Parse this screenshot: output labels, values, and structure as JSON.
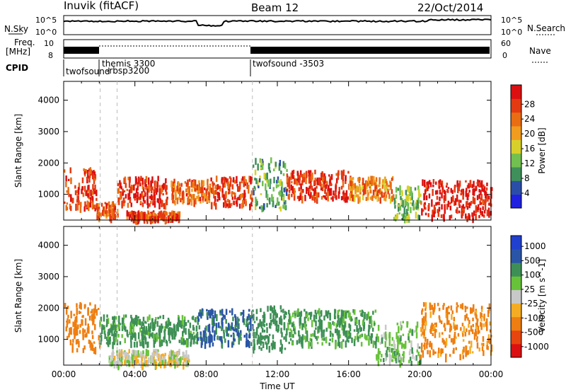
{
  "header": {
    "station": "Inuvik (fitACF)",
    "beam": "Beam 12",
    "date": "22/Oct/2014"
  },
  "summary_panels": {
    "sky_label": "N.Sky",
    "sky_ticks": [
      "10^5",
      "10^0"
    ],
    "search_label": "N.Search",
    "search_ticks": [
      "10^5",
      "10^0"
    ],
    "freq_label_top": "Freq.",
    "freq_label_bottom": "[MHz]",
    "freq_ticks": [
      "10",
      "8"
    ],
    "nave_label": "Nave",
    "nave_ticks": [
      "60",
      "0"
    ],
    "cpid_label": "CPID",
    "cpid_entries": [
      {
        "text": "twofsound",
        "t": 0.05
      },
      {
        "text": "themis 3300",
        "t": 2.0
      },
      {
        "text": "-rbsp3200",
        "t": 2.05
      },
      {
        "text": "twofsound -3503",
        "t": 10.6
      }
    ]
  },
  "colors": {
    "power": [
      "#2020e0",
      "#2a4ea8",
      "#3f8f5b",
      "#72c04f",
      "#d7d02a",
      "#f19b1f",
      "#e96d12",
      "#e43a12",
      "#dc1010"
    ],
    "velocity": [
      "#dc1010",
      "#e7450f",
      "#ee7e11",
      "#f4ad23",
      "#c8c8c8",
      "#67c23a",
      "#3e8f56",
      "#2a55a6",
      "#2040d0"
    ]
  },
  "chart_data": [
    {
      "type": "heatmap",
      "name": "power",
      "xlabel": "",
      "ylabel": "Slant Range [km]",
      "x_ticks": [
        "00:00",
        "04:00",
        "08:00",
        "12:00",
        "16:00",
        "20:00",
        "00:00"
      ],
      "y_ticks": [
        1000,
        2000,
        3000,
        4000
      ],
      "xlim": [
        0,
        24
      ],
      "ylim": [
        180,
        4600
      ],
      "colorbar": {
        "label": "Power [dB]",
        "ticks": [
          "4",
          "8",
          "12",
          "16",
          "20",
          "24",
          "28"
        ],
        "range": [
          0,
          30
        ]
      },
      "regions": [
        {
          "t": [
            0.0,
            1.8
          ],
          "r": [
            600,
            1900
          ],
          "v": 25
        },
        {
          "t": [
            1.8,
            3.0
          ],
          "r": [
            300,
            800
          ],
          "v": 22
        },
        {
          "t": [
            3.0,
            5.8
          ],
          "r": [
            700,
            1600
          ],
          "v": 26
        },
        {
          "t": [
            3.5,
            6.5
          ],
          "r": [
            250,
            500
          ],
          "v": 24
        },
        {
          "t": [
            6.0,
            8.2
          ],
          "r": [
            800,
            1500
          ],
          "v": 22
        },
        {
          "t": [
            8.2,
            10.6
          ],
          "r": [
            700,
            1600
          ],
          "v": 25
        },
        {
          "t": [
            10.6,
            12.5
          ],
          "r": [
            600,
            2200
          ],
          "v": 10
        },
        {
          "t": [
            12.5,
            16.0
          ],
          "r": [
            900,
            1800
          ],
          "v": 26
        },
        {
          "t": [
            16.0,
            18.5
          ],
          "r": [
            900,
            1600
          ],
          "v": 20
        },
        {
          "t": [
            18.5,
            20.0
          ],
          "r": [
            250,
            1300
          ],
          "v": 12
        },
        {
          "t": [
            20.0,
            24.0
          ],
          "r": [
            300,
            1500
          ],
          "v": 28
        }
      ]
    },
    {
      "type": "heatmap",
      "name": "velocity",
      "xlabel": "Time UT",
      "ylabel": "Slant Range [km]",
      "x_ticks": [
        "00:00",
        "04:00",
        "08:00",
        "12:00",
        "16:00",
        "20:00",
        "00:00"
      ],
      "y_ticks": [
        1000,
        2000,
        3000,
        4000
      ],
      "xlim": [
        0,
        24
      ],
      "ylim": [
        180,
        4600
      ],
      "colorbar": {
        "label": "Velocity [m s^-1]",
        "ticks": [
          "1000",
          "500",
          "100",
          "25",
          "-25",
          "-100",
          "-500",
          "-1000"
        ]
      },
      "regions": [
        {
          "t": [
            0.0,
            2.0
          ],
          "r": [
            700,
            2200
          ],
          "v": -200
        },
        {
          "t": [
            2.0,
            7.5
          ],
          "r": [
            900,
            1800
          ],
          "v": 150
        },
        {
          "t": [
            2.5,
            7.0
          ],
          "r": [
            250,
            700
          ],
          "v": 0
        },
        {
          "t": [
            7.5,
            10.6
          ],
          "r": [
            900,
            2000
          ],
          "v": 600
        },
        {
          "t": [
            10.6,
            12.5
          ],
          "r": [
            700,
            2100
          ],
          "v": 200
        },
        {
          "t": [
            12.5,
            17.5
          ],
          "r": [
            900,
            2000
          ],
          "v": 120
        },
        {
          "t": [
            17.5,
            20.0
          ],
          "r": [
            300,
            1600
          ],
          "v": 60
        },
        {
          "t": [
            20.0,
            24.0
          ],
          "r": [
            500,
            2200
          ],
          "v": -150
        }
      ]
    }
  ]
}
